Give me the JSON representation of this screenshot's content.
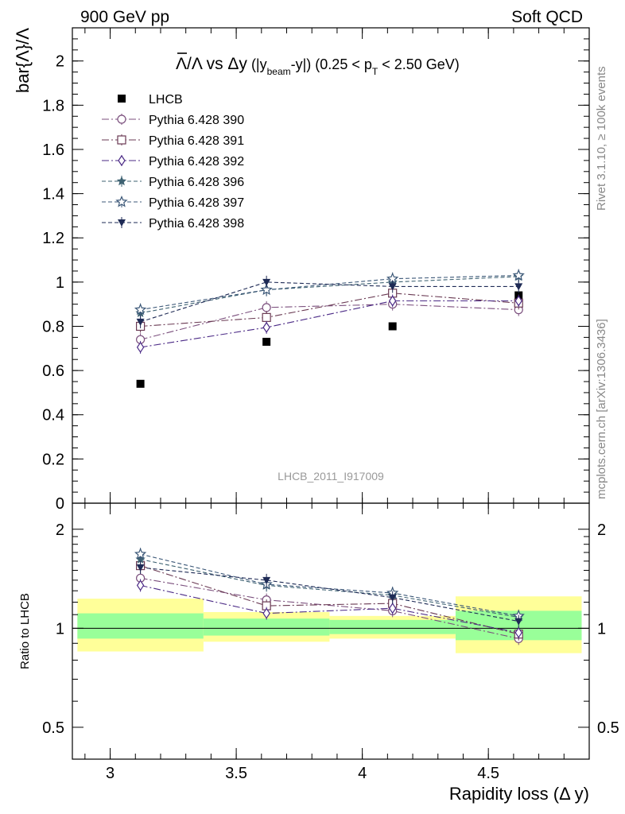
{
  "header": {
    "left": "900 GeV pp",
    "right": "Soft QCD"
  },
  "side_labels": {
    "rivet": "Rivet 3.1.10, ≥ 100k events",
    "mcplots": "mcplots.cern.ch [arXiv:1306.3436]"
  },
  "watermark": "LHCB_2011_I917009",
  "chart_data": [
    {
      "type": "scatter",
      "title": {
        "main": "Λ/Λ vs Δy",
        "detail_prefix": " (|y",
        "detail_sub1": "beam",
        "detail_mid": "-y|) (0.25 < p",
        "detail_sub2": "T",
        "detail_suffix": " < 2.50 GeV)"
      },
      "ylabel": "bar{Λ}/Λ",
      "xlabel": "Rapidity loss (Δ y)",
      "xlim": [
        2.85,
        4.9
      ],
      "ylim": [
        0,
        2.15
      ],
      "yticks": [
        "0",
        "0.2",
        "0.4",
        "0.6",
        "0.8",
        "1",
        "1.2",
        "1.4",
        "1.6",
        "1.8",
        "2"
      ],
      "x": [
        3.12,
        3.62,
        4.12,
        4.62
      ],
      "legend_position": "top-left",
      "series": [
        {
          "name": "LHCB",
          "values": [
            0.54,
            0.73,
            0.8,
            0.94
          ],
          "color": "#000000",
          "marker": "filled-square",
          "line": "none"
        },
        {
          "name": "Pythia 6.428 390",
          "values": [
            0.74,
            0.885,
            0.9,
            0.875
          ],
          "color": "#7b4f7d",
          "marker": "open-circle",
          "line": "dashdot"
        },
        {
          "name": "Pythia 6.428 391",
          "values": [
            0.8,
            0.84,
            0.95,
            0.905
          ],
          "color": "#6a3a53",
          "marker": "open-square",
          "line": "dashdot"
        },
        {
          "name": "Pythia 6.428 392",
          "values": [
            0.705,
            0.795,
            0.915,
            0.915
          ],
          "color": "#4b2a86",
          "marker": "open-diamond",
          "line": "dashdot"
        },
        {
          "name": "Pythia 6.428 396",
          "values": [
            0.86,
            0.965,
            1.0,
            1.025
          ],
          "color": "#3e6272",
          "marker": "filled-star",
          "line": "dashed"
        },
        {
          "name": "Pythia 6.428 397",
          "values": [
            0.875,
            0.965,
            1.015,
            1.03
          ],
          "color": "#3c5878",
          "marker": "open-star",
          "line": "dashed"
        },
        {
          "name": "Pythia 6.428 398",
          "values": [
            0.82,
            1.0,
            0.98,
            0.98
          ],
          "color": "#1e2a55",
          "marker": "filled-triangle-down",
          "line": "dashed"
        }
      ]
    },
    {
      "type": "scatter",
      "ylabel": "Ratio to LHCB",
      "xlabel": "Rapidity loss (Δ y)",
      "xlim": [
        2.85,
        4.9
      ],
      "ylim": [
        0.4,
        2.4
      ],
      "yscale": "log",
      "yticks": [
        "0.5",
        "1",
        "2"
      ],
      "xticks": [
        "3",
        "3.5",
        "4",
        "4.5"
      ],
      "reference_line": 1,
      "bands": {
        "bins": [
          [
            2.87,
            3.37
          ],
          [
            3.37,
            3.87
          ],
          [
            3.87,
            4.37
          ],
          [
            4.37,
            4.87
          ]
        ],
        "inner": [
          [
            0.93,
            1.11
          ],
          [
            0.95,
            1.07
          ],
          [
            0.96,
            1.06
          ],
          [
            0.92,
            1.13
          ]
        ],
        "outer": [
          [
            0.85,
            1.23
          ],
          [
            0.91,
            1.12
          ],
          [
            0.93,
            1.09
          ],
          [
            0.84,
            1.25
          ]
        ],
        "inner_color": "#99ff99",
        "outer_color": "#ffff99"
      },
      "x": [
        3.12,
        3.62,
        4.12,
        4.62
      ],
      "series": [
        {
          "name": "Pythia 6.428 390",
          "values": [
            1.42,
            1.22,
            1.13,
            0.93
          ]
        },
        {
          "name": "Pythia 6.428 391",
          "values": [
            1.55,
            1.17,
            1.19,
            0.96
          ]
        },
        {
          "name": "Pythia 6.428 392",
          "values": [
            1.35,
            1.11,
            1.15,
            0.97
          ]
        },
        {
          "name": "Pythia 6.428 396",
          "values": [
            1.62,
            1.35,
            1.26,
            1.08
          ]
        },
        {
          "name": "Pythia 6.428 397",
          "values": [
            1.68,
            1.36,
            1.28,
            1.09
          ]
        },
        {
          "name": "Pythia 6.428 398",
          "values": [
            1.53,
            1.4,
            1.24,
            1.05
          ]
        }
      ]
    }
  ]
}
